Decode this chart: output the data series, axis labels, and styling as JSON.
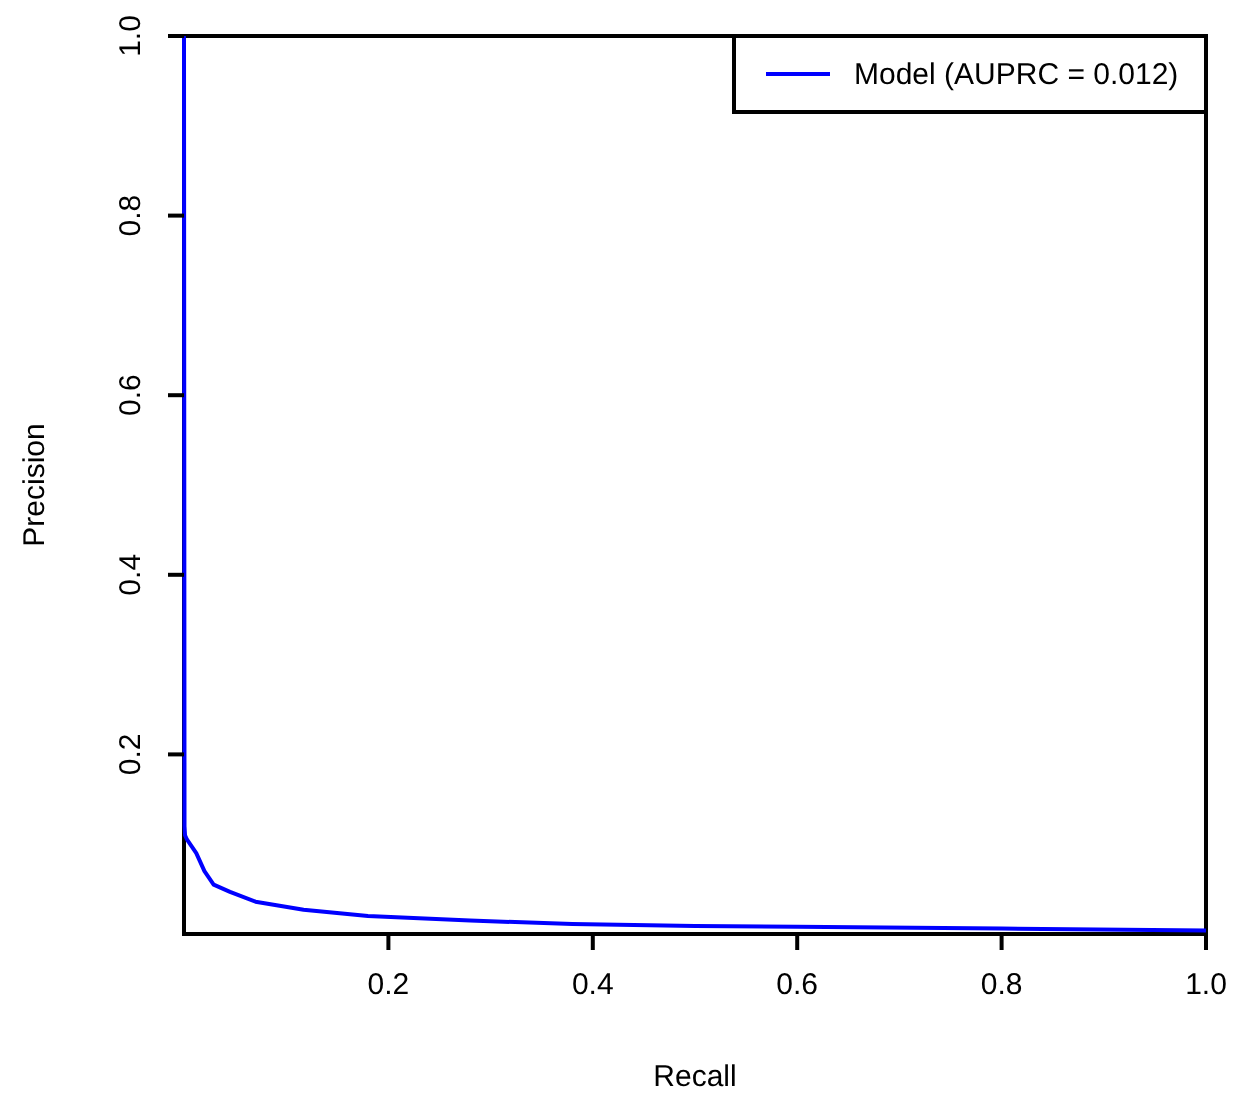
{
  "chart_data": {
    "type": "line",
    "xlabel": "Recall",
    "ylabel": "Precision",
    "xlim": [
      0,
      1
    ],
    "ylim": [
      0,
      1
    ],
    "xticks": [
      0.2,
      0.4,
      0.6,
      0.8,
      {
        "value": 1,
        "label": "1.0"
      }
    ],
    "yticks": [
      0.2,
      0.4,
      0.6,
      0.8,
      {
        "value": 1,
        "label": "1.0"
      }
    ],
    "legend": "top right",
    "grid": false,
    "series": [
      {
        "name": "Model (AUPRC = 0.012)",
        "color": "#0000ff",
        "x": [
          0,
          0.0005,
          0.001,
          0.003,
          0.006,
          0.012,
          0.02,
          0.029,
          0.045,
          0.07,
          0.117,
          0.18,
          0.28,
          0.38,
          0.5,
          0.6,
          0.8,
          1.0
        ],
        "values": [
          1.0,
          0.12,
          0.11,
          0.105,
          0.1,
          0.09,
          0.07,
          0.055,
          0.047,
          0.036,
          0.027,
          0.02,
          0.015,
          0.011,
          0.009,
          0.008,
          0.006,
          0.004
        ]
      }
    ]
  }
}
